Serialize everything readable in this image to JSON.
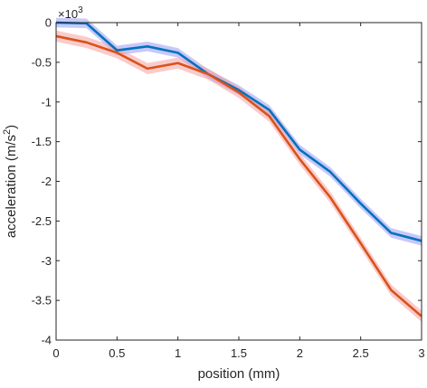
{
  "chart_data": {
    "type": "line",
    "title": "",
    "xlabel": "position (mm)",
    "ylabel": "acceleration (m/s^2)",
    "ylabel_parts": {
      "base": "acceleration (m/s",
      "sup": "2",
      "close": ")"
    },
    "y_exponent": {
      "prefix": "×10",
      "sup": "3"
    },
    "xlim": [
      0,
      3
    ],
    "ylim": [
      -4,
      0
    ],
    "xticks": [
      0,
      0.5,
      1,
      1.5,
      2,
      2.5,
      3
    ],
    "xtick_labels": [
      "0",
      "0.5",
      "1",
      "1.5",
      "2",
      "2.5",
      "3"
    ],
    "yticks": [
      0,
      -0.5,
      -1,
      -1.5,
      -2,
      -2.5,
      -3,
      -3.5,
      -4
    ],
    "ytick_labels": [
      "0",
      "-0.5",
      "-1",
      "-1.5",
      "-2",
      "-2.5",
      "-3",
      "-3.5",
      "-4"
    ],
    "grid": false,
    "legend": "none",
    "x": [
      0,
      0.25,
      0.5,
      0.75,
      1.0,
      1.25,
      1.5,
      1.75,
      2.0,
      2.25,
      2.5,
      2.75,
      3.0
    ],
    "series": [
      {
        "color": "#0072BD",
        "band_color": "#9a9af5",
        "values": [
          0.0,
          -0.01,
          -0.35,
          -0.3,
          -0.38,
          -0.65,
          -0.85,
          -1.1,
          -1.6,
          -1.88,
          -2.28,
          -2.65,
          -2.75
        ],
        "band": 0.06
      },
      {
        "color": "#D95319",
        "band_color": "#f5a0a0",
        "values": [
          -0.17,
          -0.25,
          -0.38,
          -0.58,
          -0.51,
          -0.65,
          -0.88,
          -1.18,
          -1.72,
          -2.2,
          -2.78,
          -3.37,
          -3.7
        ],
        "band": 0.07
      }
    ]
  }
}
